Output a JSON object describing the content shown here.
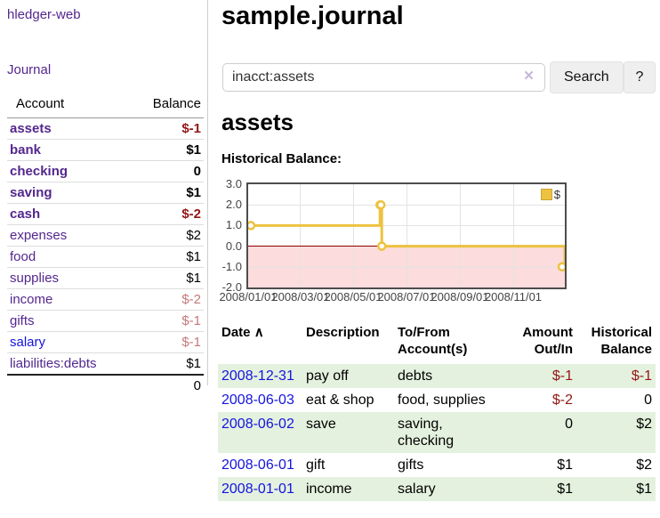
{
  "app": {
    "title": "hledger-web"
  },
  "sidebar": {
    "journal_link": "Journal",
    "accounts": {
      "header_account": "Account",
      "header_balance": "Balance",
      "rows": [
        {
          "name": "assets",
          "balance": "$-1"
        },
        {
          "name": "bank",
          "balance": "$1"
        },
        {
          "name": "checking",
          "balance": "0"
        },
        {
          "name": "saving",
          "balance": "$1"
        },
        {
          "name": "cash",
          "balance": "$-2"
        },
        {
          "name": "expenses",
          "balance": "$2"
        },
        {
          "name": "food",
          "balance": "$1"
        },
        {
          "name": "supplies",
          "balance": "$1"
        },
        {
          "name": "income",
          "balance": "$-2"
        },
        {
          "name": "gifts",
          "balance": "$-1"
        },
        {
          "name": "salary",
          "balance": "$-1"
        },
        {
          "name": "liabilities:debts",
          "balance": "$1"
        }
      ],
      "total": "0"
    }
  },
  "main": {
    "title": "sample.journal",
    "search": {
      "value": "inacct:assets",
      "clear_icon": "×",
      "button_label": "Search",
      "help_label": "?"
    },
    "account_heading": "assets",
    "chart_title": "Historical Balance:",
    "register": {
      "headers": {
        "date": "Date",
        "sort_icon": "∧",
        "description": "Description",
        "tofrom_line1": "To/From",
        "tofrom_line2": "Account(s)",
        "amount_line1": "Amount",
        "amount_line2": "Out/In",
        "hist_line1": "Historical",
        "hist_line2": "Balance"
      },
      "rows": [
        {
          "date": "2008-12-31",
          "description": "pay off",
          "accounts": "debts",
          "amount": "$-1",
          "balance": "$-1"
        },
        {
          "date": "2008-06-03",
          "description": "eat & shop",
          "accounts": "food, supplies",
          "amount": "$-2",
          "balance": "0"
        },
        {
          "date": "2008-06-02",
          "description": "save",
          "accounts": "saving,\nchecking",
          "amount": "0",
          "balance": "$2"
        },
        {
          "date": "2008-06-01",
          "description": "gift",
          "accounts": "gifts",
          "amount": "$1",
          "balance": "$2"
        },
        {
          "date": "2008-01-01",
          "description": "income",
          "accounts": "salary",
          "amount": "$1",
          "balance": "$1"
        }
      ]
    }
  },
  "chart_data": {
    "type": "line",
    "title": "Historical Balance:",
    "step": true,
    "series": [
      {
        "name": "$",
        "color": "#edc240",
        "points": [
          [
            "2008-01-01",
            1
          ],
          [
            "2008-06-01",
            2
          ],
          [
            "2008-06-02",
            2
          ],
          [
            "2008-06-03",
            0
          ],
          [
            "2008-12-31",
            -1
          ]
        ]
      }
    ],
    "ylim": [
      -2.0,
      3.0
    ],
    "xlim": [
      "2008-01-01",
      "2008-12-31"
    ],
    "y_tick_labels": [
      "3.0",
      "2.0",
      "1.0",
      "0.0",
      "-1.0",
      "-2.0"
    ],
    "x_tick_labels": [
      "2008/01/01",
      "2008/03/01",
      "2008/05/01",
      "2008/07/01",
      "2008/09/01",
      "2008/11/01"
    ],
    "grid": true,
    "legend_position": "top-right",
    "negative_region_color": "#fcdcdc",
    "zero_line_color": "#8b0000"
  },
  "colors": {
    "link_purple": "#54278e",
    "link_blue": "#1414e0",
    "negative_strong": "#941616",
    "negative_soft": "#c47979",
    "row_green": "#e4f1de",
    "series_gold": "#edc240"
  }
}
